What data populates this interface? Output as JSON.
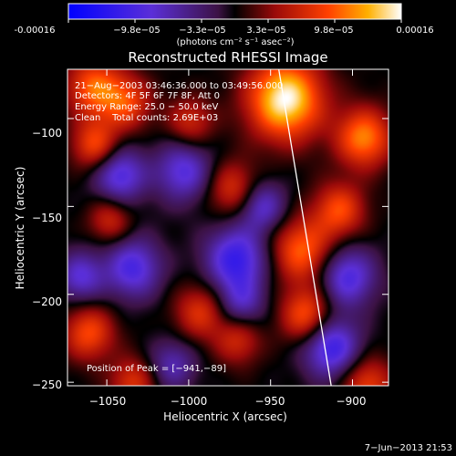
{
  "colors": {
    "background": "#000000",
    "foreground": "#ffffff",
    "limb": "#ffffff"
  },
  "colorbar": {
    "tick_labels": [
      "-0.00016",
      "−9.8e−05",
      "−3.3e−05",
      "3.3e−05",
      "9.8e−05",
      "0.00016"
    ],
    "range": [
      -0.00016,
      0.00016
    ],
    "unit_label": "(photons cm⁻² s⁻¹ asec⁻²)"
  },
  "chart_data": {
    "type": "heatmap",
    "title": "Reconstructed RHESSI Image",
    "xlabel": "Heliocentric X (arcsec)",
    "ylabel": "Heliocentric Y (arcsec)",
    "xlim": [
      -1074,
      -878
    ],
    "ylim": [
      -252,
      -72
    ],
    "x_ticks": [
      -1050,
      -1000,
      -950,
      -900
    ],
    "x_tick_labels": [
      "−1050",
      "−1000",
      "−950",
      "−900"
    ],
    "y_ticks": [
      -100,
      -150,
      -200,
      -250
    ],
    "y_tick_labels": [
      "−100",
      "−150",
      "−200",
      "−250"
    ],
    "annotations": [
      "21−Aug−2003 03:46:36.000 to 03:49:56.000",
      "Detectors: 4F 5F 6F 7F 8F, Att 0",
      "Energy Range: 25.0 − 50.0 keV",
      "Clean    Total counts: 2.69E+03"
    ],
    "peak_label": "Position of Peak = [−941,−89]",
    "peak": {
      "x": -941,
      "y": -89
    },
    "limb_line": [
      {
        "x": -945,
        "y": -72
      },
      {
        "x": -913,
        "y": -252
      }
    ],
    "blobs": [
      {
        "x": -941,
        "y": -89,
        "amp": 1.0,
        "w": 16
      },
      {
        "x": -893,
        "y": -111,
        "amp": 0.7,
        "w": 12
      },
      {
        "x": -931,
        "y": -175,
        "amp": 0.62,
        "w": 13
      },
      {
        "x": -908,
        "y": -152,
        "amp": 0.55,
        "w": 11
      },
      {
        "x": -1058,
        "y": -82,
        "amp": 0.6,
        "w": 12
      },
      {
        "x": -1038,
        "y": -91,
        "amp": 0.5,
        "w": 11
      },
      {
        "x": -1057,
        "y": -115,
        "amp": 0.55,
        "w": 10
      },
      {
        "x": -1061,
        "y": -222,
        "amp": 0.55,
        "w": 11
      },
      {
        "x": -993,
        "y": -210,
        "amp": 0.45,
        "w": 11
      },
      {
        "x": -1034,
        "y": -250,
        "amp": 0.45,
        "w": 10
      },
      {
        "x": -928,
        "y": -212,
        "amp": 0.6,
        "w": 11
      },
      {
        "x": -891,
        "y": -251,
        "amp": 0.5,
        "w": 11
      },
      {
        "x": -973,
        "y": -140,
        "amp": 0.45,
        "w": 11
      },
      {
        "x": -999,
        "y": -102,
        "amp": 0.4,
        "w": 10
      },
      {
        "x": -1048,
        "y": -158,
        "amp": 0.4,
        "w": 9
      },
      {
        "x": -970,
        "y": -226,
        "amp": 0.4,
        "w": 10
      },
      {
        "x": -1042,
        "y": -132,
        "amp": -0.6,
        "w": 11
      },
      {
        "x": -1003,
        "y": -130,
        "amp": -0.55,
        "w": 12
      },
      {
        "x": -1034,
        "y": -185,
        "amp": -0.6,
        "w": 12
      },
      {
        "x": -1066,
        "y": -190,
        "amp": -0.5,
        "w": 10
      },
      {
        "x": -971,
        "y": -180,
        "amp": -0.7,
        "w": 13
      },
      {
        "x": -955,
        "y": -150,
        "amp": -0.5,
        "w": 10
      },
      {
        "x": -903,
        "y": -190,
        "amp": -0.6,
        "w": 12
      },
      {
        "x": -913,
        "y": -230,
        "amp": -0.7,
        "w": 12
      },
      {
        "x": -968,
        "y": -205,
        "amp": -0.4,
        "w": 10
      },
      {
        "x": -1010,
        "y": -240,
        "amp": -0.4,
        "w": 10
      }
    ]
  },
  "footer": {
    "timestamp": "7−Jun−2013 21:53"
  }
}
